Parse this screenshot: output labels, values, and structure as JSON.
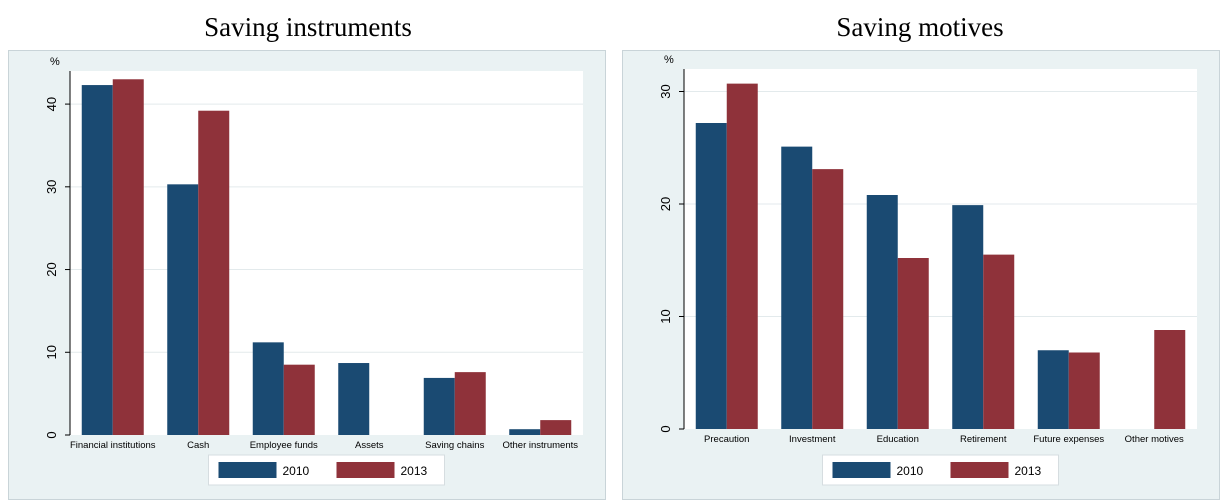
{
  "chart_data": [
    {
      "type": "bar",
      "title": "Saving instruments",
      "ylabel": "%",
      "ylim": [
        0,
        44
      ],
      "yticks": [
        0,
        10,
        20,
        30,
        40
      ],
      "categories": [
        "Financial institutions",
        "Cash",
        "Employee funds",
        "Assets",
        "Saving chains",
        "Other instruments"
      ],
      "series": [
        {
          "name": "2010",
          "color": "#1a4a72",
          "values": [
            42.3,
            30.3,
            11.2,
            8.7,
            6.9,
            0.7
          ]
        },
        {
          "name": "2013",
          "color": "#8f323a",
          "values": [
            43.0,
            39.2,
            8.5,
            null,
            7.6,
            1.8
          ]
        }
      ],
      "grid": true,
      "legend": "bottom"
    },
    {
      "type": "bar",
      "title": "Saving motives",
      "ylabel": "%",
      "ylim": [
        0,
        32
      ],
      "yticks": [
        0,
        10,
        20,
        30
      ],
      "categories": [
        "Precaution",
        "Investment",
        "Education",
        "Retirement",
        "Future expenses",
        "Other motives"
      ],
      "series": [
        {
          "name": "2010",
          "color": "#1a4a72",
          "values": [
            27.2,
            25.1,
            20.8,
            19.9,
            7.0,
            null
          ]
        },
        {
          "name": "2013",
          "color": "#8f323a",
          "values": [
            30.7,
            23.1,
            15.2,
            15.5,
            6.8,
            8.8
          ]
        }
      ],
      "grid": true,
      "legend": "bottom"
    }
  ]
}
